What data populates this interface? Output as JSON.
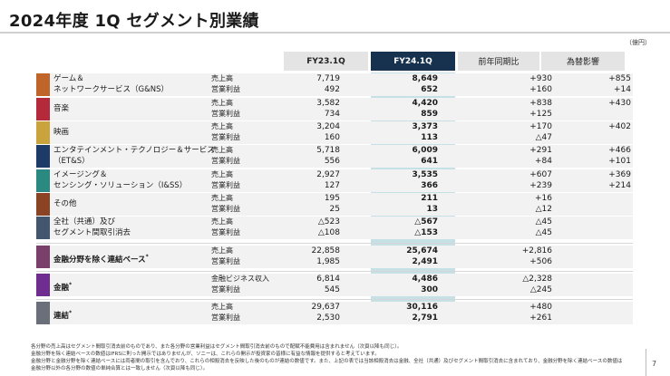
{
  "title": "2024年度 1Q セグメント別業績",
  "unit": "（億円）",
  "columns": {
    "fy23": "FY23.1Q",
    "fy24": "FY24.1Q",
    "yoy": "前年同期比",
    "fx": "為替影響"
  },
  "segments": [
    {
      "label1": "ゲーム＆",
      "label2": "ネットワークサービス（G&NS）",
      "color": "#c0652a",
      "rows": [
        {
          "metric": "売上高",
          "fy23": "7,719",
          "fy24": "8,649",
          "yoy": "+930",
          "fx": "+855"
        },
        {
          "metric": "営業利益",
          "fy23": "492",
          "fy24": "652",
          "yoy": "+160",
          "fx": "+14"
        }
      ]
    },
    {
      "label1": "音楽",
      "label2": "",
      "color": "#b42a3b",
      "rows": [
        {
          "metric": "売上高",
          "fy23": "3,582",
          "fy24": "4,420",
          "yoy": "+838",
          "fx": "+430"
        },
        {
          "metric": "営業利益",
          "fy23": "734",
          "fy24": "859",
          "yoy": "+125",
          "fx": ""
        }
      ]
    },
    {
      "label1": "映画",
      "label2": "",
      "color": "#c9a33b",
      "rows": [
        {
          "metric": "売上高",
          "fy23": "3,204",
          "fy24": "3,373",
          "yoy": "+170",
          "fx": "+402"
        },
        {
          "metric": "営業利益",
          "fy23": "160",
          "fy24": "113",
          "yoy": "△47",
          "fx": ""
        }
      ]
    },
    {
      "label1": "エンタテインメント・テクノロジー＆サービス",
      "label2": "（ET&S）",
      "color": "#1e3a66",
      "rows": [
        {
          "metric": "売上高",
          "fy23": "5,718",
          "fy24": "6,009",
          "yoy": "+291",
          "fx": "+466"
        },
        {
          "metric": "営業利益",
          "fy23": "556",
          "fy24": "641",
          "yoy": "+84",
          "fx": "+101"
        }
      ]
    },
    {
      "label1": "イメージング＆",
      "label2": "センシング・ソリューション（I&SS）",
      "color": "#2a8a82",
      "rows": [
        {
          "metric": "売上高",
          "fy23": "2,927",
          "fy24": "3,535",
          "yoy": "+607",
          "fx": "+369"
        },
        {
          "metric": "営業利益",
          "fy23": "127",
          "fy24": "366",
          "yoy": "+239",
          "fx": "+214"
        }
      ]
    },
    {
      "label1": "その他",
      "label2": "",
      "color": "#8a4423",
      "rows": [
        {
          "metric": "売上高",
          "fy23": "195",
          "fy24": "211",
          "yoy": "+16",
          "fx": ""
        },
        {
          "metric": "営業利益",
          "fy23": "25",
          "fy24": "13",
          "yoy": "△12",
          "fx": ""
        }
      ]
    },
    {
      "label1": "全社（共通）及び",
      "label2": "セグメント間取引消去",
      "color": "#43566e",
      "rows": [
        {
          "metric": "売上高",
          "fy23": "△523",
          "fy24": "△567",
          "yoy": "△45",
          "fx": ""
        },
        {
          "metric": "営業利益",
          "fy23": "△108",
          "fy24": "△153",
          "yoy": "△45",
          "fx": ""
        }
      ]
    }
  ],
  "summary": [
    {
      "label": "金融分野を除く連結ベース",
      "note": "*",
      "color": "#7a3f6a",
      "rows": [
        {
          "metric": "売上高",
          "fy23": "22,858",
          "fy24": "25,674",
          "yoy": "+2,816",
          "fx": ""
        },
        {
          "metric": "営業利益",
          "fy23": "1,985",
          "fy24": "2,491",
          "yoy": "+506",
          "fx": ""
        }
      ]
    },
    {
      "label": "金融",
      "note": "*",
      "color": "#6e2d8f",
      "rows": [
        {
          "metric": "金融ビジネス収入",
          "fy23": "6,814",
          "fy24": "4,486",
          "yoy": "△2,328",
          "fx": ""
        },
        {
          "metric": "営業利益",
          "fy23": "545",
          "fy24": "300",
          "yoy": "△245",
          "fx": ""
        }
      ]
    },
    {
      "label": "連結",
      "note": "*",
      "color": "#6b6f7a",
      "rows": [
        {
          "metric": "売上高",
          "fy23": "29,637",
          "fy24": "30,116",
          "yoy": "+480",
          "fx": ""
        },
        {
          "metric": "営業利益",
          "fy23": "2,530",
          "fy24": "2,791",
          "yoy": "+261",
          "fx": ""
        }
      ]
    }
  ],
  "footnotes": [
    "各分野の売上高はセグメント間取引消去前のものであり、また各分野の営業利益はセグメント間取引消去前のもので配賦不能費用は含まれません（次頁以降も同じ）。",
    "金融分野を除く連結ベースの数値はIFRSに則った開示ではありませんが、ソニーは、これらの開示が投資家の皆様に有益な情報を提供すると考えています。",
    "金融分野と金融分野を除く連結ベースには両者間の取引を含んでおり、これらの相殺消去を反映した後のものが連結の数値です。また、上記の表では当該相殺消去は金融、全社（共通）及びセグメント間取引消去に含まれており、金融分野を除く連結ベースの数値は",
    "金融分野以外の各分野の数値の単純合算とは一致しません（次頁以降も同じ）。"
  ],
  "page_number": "7"
}
